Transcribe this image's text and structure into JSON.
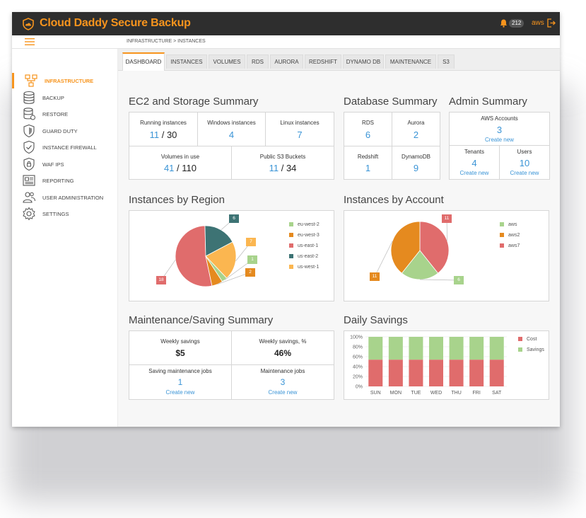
{
  "app": {
    "title": "Cloud Daddy Secure Backup",
    "notifications": "212",
    "account": "aws"
  },
  "breadcrumb": "INFRASTRUCTURE > INSTANCES",
  "sidebar": {
    "items": [
      {
        "label": "INFRASTRUCTURE",
        "icon": "network-icon"
      },
      {
        "label": "BACKUP",
        "icon": "database-icon"
      },
      {
        "label": "RESTORE",
        "icon": "database-restore-icon"
      },
      {
        "label": "GUARD DUTY",
        "icon": "shield-icon"
      },
      {
        "label": "INSTANCE FIREWALL",
        "icon": "shield-check-icon"
      },
      {
        "label": "WAF IPS",
        "icon": "shield-lock-icon"
      },
      {
        "label": "REPORTING",
        "icon": "report-icon"
      },
      {
        "label": "USER ADMINISTRATION",
        "icon": "users-icon"
      },
      {
        "label": "SETTINGS",
        "icon": "gear-icon"
      }
    ]
  },
  "tabs": [
    "DASHBOARD",
    "INSTANCES",
    "VOLUMES",
    "RDS",
    "AURORA",
    "REDSHIFT",
    "DYNAMO DB",
    "MAINTENANCE",
    "S3"
  ],
  "ec2": {
    "title": "EC2 and Storage Summary",
    "running_label": "Running instances",
    "running_value": "11",
    "running_total": "30",
    "windows_label": "Windows instances",
    "windows_value": "4",
    "linux_label": "Linux instances",
    "linux_value": "7",
    "volumes_label": "Volumes in use",
    "volumes_value": "41",
    "volumes_total": "110",
    "s3_label": "Public S3 Buckets",
    "s3_value": "11",
    "s3_total": "34",
    "sep": "/"
  },
  "db": {
    "title": "Database Summary",
    "rds_label": "RDS",
    "rds_value": "6",
    "aurora_label": "Aurora",
    "aurora_value": "2",
    "redshift_label": "Redshift",
    "redshift_value": "1",
    "dynamo_label": "DynamoDB",
    "dynamo_value": "9"
  },
  "admin": {
    "title": "Admin Summary",
    "accounts_label": "AWS Accounts",
    "accounts_value": "3",
    "tenants_label": "Tenants",
    "tenants_value": "4",
    "users_label": "Users",
    "users_value": "10",
    "create_new": "Create new"
  },
  "region": {
    "title": "Instances by Region",
    "slices": [
      {
        "name": "us-east-1",
        "value": 18,
        "color": "#e06c6c"
      },
      {
        "name": "us-east-2",
        "value": 6,
        "color": "#3d7374"
      },
      {
        "name": "us-west-1",
        "value": 7,
        "color": "#fbb650"
      },
      {
        "name": "eu-west-2",
        "value": 1,
        "color": "#a8d38c"
      },
      {
        "name": "eu-west-3",
        "value": 2,
        "color": "#e58a1f"
      }
    ],
    "legend": [
      {
        "name": "eu-west-2",
        "color": "#a8d38c"
      },
      {
        "name": "eu-west-3",
        "color": "#e58a1f"
      },
      {
        "name": "us-east-1",
        "color": "#e06c6c"
      },
      {
        "name": "us-east-2",
        "color": "#3d7374"
      },
      {
        "name": "us-west-1",
        "color": "#fbb650"
      }
    ]
  },
  "account": {
    "title": "Instances by Account",
    "slices": [
      {
        "name": "aws7",
        "value": 11,
        "color": "#e06c6c"
      },
      {
        "name": "aws",
        "value": 6,
        "color": "#a8d38c"
      },
      {
        "name": "aws2",
        "value": 11,
        "color": "#e58a1f"
      }
    ],
    "legend": [
      {
        "name": "aws",
        "color": "#a8d38c"
      },
      {
        "name": "aws2",
        "color": "#e58a1f"
      },
      {
        "name": "aws7",
        "color": "#e06c6c"
      }
    ]
  },
  "maint": {
    "title": "Maintenance/Saving Summary",
    "weekly_label": "Weekly savings",
    "weekly_value": "$5",
    "weekly_pct_label": "Weekly savings, %",
    "weekly_pct_value": "46%",
    "jobs_label": "Saving maintenance jobs",
    "jobs_value": "1",
    "mjobs_label": "Maintenance jobs",
    "mjobs_value": "3",
    "create_new": "Create new"
  },
  "savings": {
    "title": "Daily Savings",
    "y_ticks": [
      "100%",
      "80%",
      "60%",
      "40%",
      "20%",
      "0%"
    ],
    "legend": [
      {
        "name": "Cost",
        "color": "#e06c6c"
      },
      {
        "name": "Savings",
        "color": "#a8d38c"
      }
    ]
  },
  "chart_data": [
    {
      "type": "pie",
      "title": "Instances by Region",
      "categories": [
        "us-east-1",
        "us-east-2",
        "us-west-1",
        "eu-west-2",
        "eu-west-3"
      ],
      "values": [
        18,
        6,
        7,
        1,
        2
      ]
    },
    {
      "type": "pie",
      "title": "Instances by Account",
      "categories": [
        "aws7",
        "aws",
        "aws2"
      ],
      "values": [
        11,
        6,
        11
      ]
    },
    {
      "type": "bar",
      "title": "Daily Savings",
      "stacked": true,
      "categories": [
        "SUN",
        "MON",
        "TUE",
        "WED",
        "THU",
        "FRI",
        "SAT"
      ],
      "series": [
        {
          "name": "Cost",
          "values": [
            54,
            54,
            54,
            54,
            54,
            54,
            54
          ]
        },
        {
          "name": "Savings",
          "values": [
            46,
            46,
            46,
            46,
            46,
            46,
            46
          ]
        }
      ],
      "ylim": [
        0,
        100
      ]
    }
  ]
}
